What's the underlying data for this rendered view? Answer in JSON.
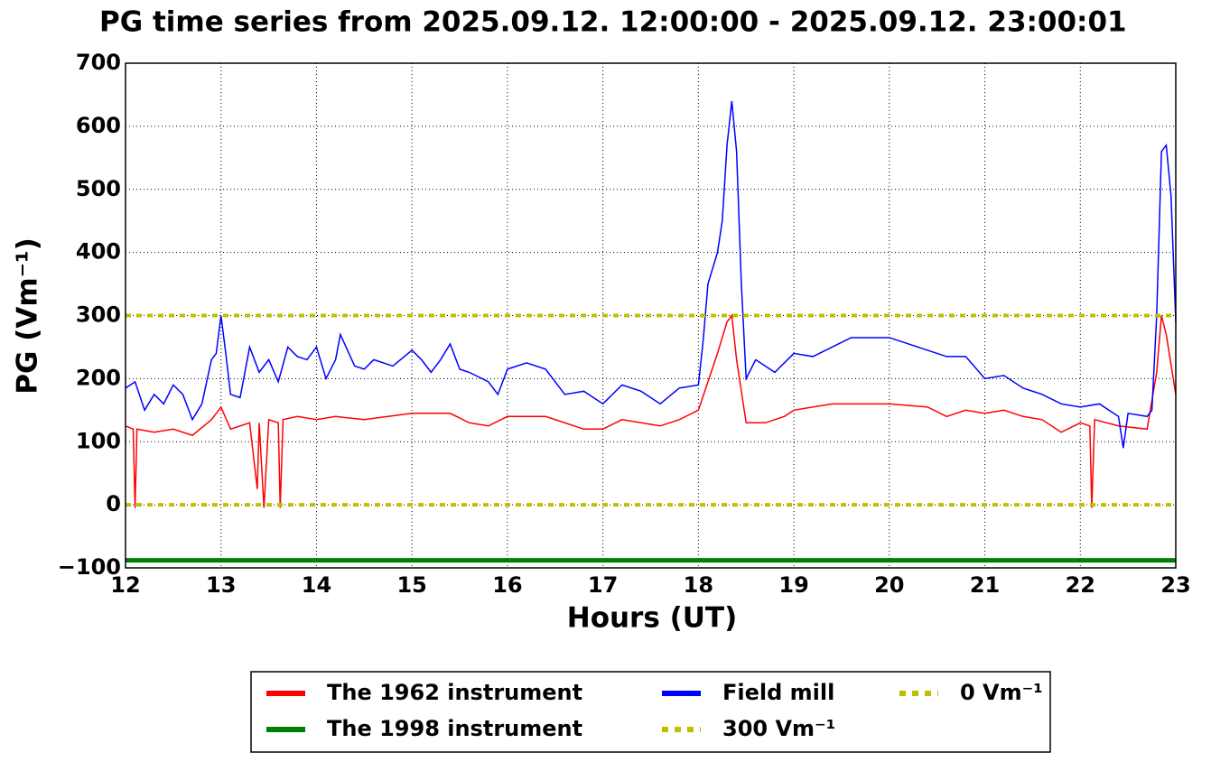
{
  "chart_data": {
    "type": "line",
    "title": "PG time series from 2025.09.12. 12:00:00 - 2025.09.12. 23:00:01",
    "xlabel": "Hours (UT)",
    "ylabel": "PG (Vm⁻¹)",
    "xlim": [
      12,
      23
    ],
    "xticks": [
      12,
      13,
      14,
      15,
      16,
      17,
      18,
      19,
      20,
      21,
      22,
      23
    ],
    "ylim": [
      -100,
      700
    ],
    "yticks": [
      {
        "value": -100,
        "label": "−100"
      },
      0,
      100,
      200,
      300,
      400,
      500,
      600,
      700
    ],
    "grid": true,
    "legend": "lower center",
    "series": [
      {
        "name": "The 1962 instrument",
        "color": "#ff0000",
        "linestyle": "solid",
        "x": [
          12.0,
          12.08,
          12.1,
          12.12,
          12.3,
          12.5,
          12.7,
          12.9,
          13.0,
          13.1,
          13.3,
          13.38,
          13.4,
          13.45,
          13.5,
          13.6,
          13.62,
          13.65,
          13.8,
          14.0,
          14.2,
          14.5,
          15.0,
          15.4,
          15.6,
          15.8,
          16.0,
          16.4,
          16.8,
          17.0,
          17.2,
          17.6,
          17.8,
          18.0,
          18.1,
          18.2,
          18.3,
          18.35,
          18.4,
          18.5,
          18.7,
          18.9,
          19.0,
          19.4,
          19.8,
          20.0,
          20.4,
          20.6,
          20.8,
          21.0,
          21.2,
          21.4,
          21.6,
          21.8,
          22.0,
          22.1,
          22.12,
          22.15,
          22.4,
          22.7,
          22.8,
          22.85,
          22.9,
          23.0
        ],
        "values": [
          125,
          120,
          -5,
          120,
          115,
          120,
          110,
          135,
          155,
          120,
          130,
          25,
          130,
          -5,
          135,
          130,
          -5,
          135,
          140,
          135,
          140,
          135,
          145,
          145,
          130,
          125,
          140,
          140,
          120,
          120,
          135,
          125,
          135,
          150,
          195,
          240,
          290,
          300,
          230,
          130,
          130,
          140,
          150,
          160,
          160,
          160,
          155,
          140,
          150,
          145,
          150,
          140,
          135,
          115,
          130,
          125,
          -5,
          135,
          125,
          120,
          210,
          300,
          270,
          175
        ]
      },
      {
        "name": "The 1998 instrument",
        "color": "#008000",
        "linestyle": "thick",
        "x": [
          12,
          23
        ],
        "values": [
          -88,
          -88
        ]
      },
      {
        "name": "Field mill",
        "color": "#0000ff",
        "linestyle": "solid",
        "x": [
          12.0,
          12.1,
          12.2,
          12.3,
          12.4,
          12.5,
          12.6,
          12.7,
          12.8,
          12.9,
          12.95,
          13.0,
          13.05,
          13.1,
          13.2,
          13.3,
          13.4,
          13.5,
          13.6,
          13.7,
          13.8,
          13.9,
          14.0,
          14.1,
          14.2,
          14.25,
          14.4,
          14.5,
          14.6,
          14.8,
          15.0,
          15.1,
          15.2,
          15.3,
          15.4,
          15.5,
          15.6,
          15.8,
          15.9,
          16.0,
          16.2,
          16.4,
          16.6,
          16.8,
          17.0,
          17.2,
          17.4,
          17.6,
          17.8,
          18.0,
          18.05,
          18.1,
          18.2,
          18.25,
          18.3,
          18.35,
          18.4,
          18.45,
          18.5,
          18.6,
          18.8,
          19.0,
          19.2,
          19.4,
          19.6,
          19.8,
          20.0,
          20.2,
          20.4,
          20.6,
          20.8,
          21.0,
          21.2,
          21.4,
          21.6,
          21.8,
          22.0,
          22.2,
          22.4,
          22.45,
          22.5,
          22.7,
          22.75,
          22.8,
          22.85,
          22.9,
          22.95,
          23.0
        ],
        "values": [
          185,
          195,
          150,
          175,
          160,
          190,
          175,
          135,
          160,
          230,
          240,
          300,
          240,
          175,
          170,
          250,
          210,
          230,
          195,
          250,
          235,
          230,
          250,
          200,
          230,
          270,
          220,
          215,
          230,
          220,
          245,
          230,
          210,
          230,
          255,
          215,
          210,
          195,
          175,
          215,
          225,
          215,
          175,
          180,
          160,
          190,
          180,
          160,
          185,
          190,
          260,
          350,
          400,
          450,
          570,
          640,
          560,
          350,
          200,
          230,
          210,
          240,
          235,
          250,
          265,
          265,
          265,
          255,
          245,
          235,
          235,
          200,
          205,
          185,
          175,
          160,
          155,
          160,
          140,
          90,
          145,
          140,
          150,
          300,
          560,
          570,
          490,
          290
        ]
      },
      {
        "name": "300 Vm⁻¹",
        "color": "#bfbf00",
        "linestyle": "dotted",
        "x": [
          12,
          23
        ],
        "values": [
          300,
          300
        ]
      },
      {
        "name": "0 Vm⁻¹",
        "color": "#bfbf00",
        "linestyle": "dotted",
        "x": [
          12,
          23
        ],
        "values": [
          0,
          0
        ]
      }
    ]
  }
}
